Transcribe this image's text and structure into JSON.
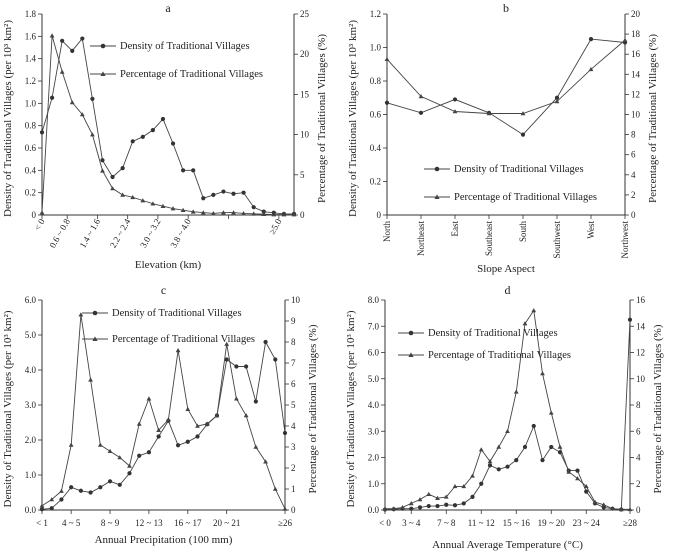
{
  "chart_data": [
    {
      "panel": "a",
      "type": "line",
      "title": "a",
      "xlabel": "Elevation (km)",
      "ylabel": "Density of Traditional Villages (per 10³ km²)",
      "ylabel2": "Percentage of Traditional Villages (%)",
      "ylim": [
        0,
        1.8
      ],
      "yticks": [
        0,
        0.2,
        0.4,
        0.6,
        0.8,
        1.0,
        1.2,
        1.4,
        1.6,
        1.8
      ],
      "ytick_labels": [
        "0",
        "0.2",
        "0.4",
        "0.6",
        "0.8",
        "1.0",
        "1.2",
        "1.4",
        "1.6",
        "1.8"
      ],
      "ylim2": [
        0,
        25
      ],
      "yticks2": [
        0,
        5,
        10,
        15,
        20,
        25
      ],
      "ytick_labels2": [
        "0",
        "5",
        "10",
        "15",
        "20",
        "25"
      ],
      "xrange": [
        0,
        25
      ],
      "xtick_positions": [
        0,
        2.5,
        5.5,
        8.5,
        11.5,
        14.5,
        18.5,
        23.5
      ],
      "xtick_labels": [
        "< 0",
        "0.6 ~ 0.8",
        "1.4 ~ 1.6",
        "2.2 ~ 2.4",
        "3.0 ~ 3.2",
        "3.8 ~ 4.0",
        "",
        "≥5.0"
      ],
      "xtick_label_rotation": -60,
      "legend_position": "top-right",
      "series": [
        {
          "name": "Density of Traditional Villages",
          "marker": "circle",
          "axis": "left",
          "x": [
            0,
            1,
            2,
            3,
            4,
            5,
            6,
            7,
            8,
            9,
            10,
            11,
            12,
            13,
            14,
            15,
            16,
            17,
            18,
            19,
            20,
            21,
            22,
            23,
            24,
            25
          ],
          "values": [
            0.74,
            1.05,
            1.56,
            1.47,
            1.58,
            1.04,
            0.49,
            0.34,
            0.42,
            0.66,
            0.7,
            0.76,
            0.86,
            0.64,
            0.4,
            0.4,
            0.15,
            0.18,
            0.21,
            0.19,
            0.2,
            0.07,
            0.03,
            0.02,
            0.01,
            0.01
          ]
        },
        {
          "name": "Percentage of Traditional Villages",
          "marker": "triangle",
          "axis": "right",
          "x": [
            0,
            1,
            2,
            3,
            4,
            5,
            6,
            7,
            8,
            9,
            10,
            11,
            12,
            13,
            14,
            15,
            16,
            17,
            18,
            19,
            20,
            21,
            22,
            23,
            24,
            25
          ],
          "values": [
            0.3,
            22.3,
            17.8,
            14.0,
            12.5,
            10.0,
            5.5,
            3.3,
            2.5,
            2.2,
            1.8,
            1.4,
            1.1,
            0.8,
            0.6,
            0.4,
            0.3,
            0.2,
            0.3,
            0.3,
            0.2,
            0.15,
            0.1,
            0.05,
            0.05,
            0.05
          ]
        }
      ]
    },
    {
      "panel": "b",
      "type": "line",
      "title": "b",
      "xlabel": "Slope Aspect",
      "ylabel": "Density of Traditional Villages (per 10³ km²)",
      "ylabel2": "Percentage of Traditional Villages (%)",
      "ylim": [
        0,
        1.2
      ],
      "yticks": [
        0,
        0.2,
        0.4,
        0.6,
        0.8,
        1.0,
        1.2
      ],
      "ytick_labels": [
        "0",
        "0.2",
        "0.4",
        "0.6",
        "0.8",
        "1.0",
        "1.2"
      ],
      "ylim2": [
        0,
        20
      ],
      "yticks2": [
        0,
        2,
        4,
        6,
        8,
        10,
        12,
        14,
        16,
        18,
        20
      ],
      "ytick_labels2": [
        "0",
        "2",
        "4",
        "6",
        "8",
        "10",
        "12",
        "14",
        "16",
        "18",
        "20"
      ],
      "xrange": [
        0,
        7
      ],
      "xtick_positions": [
        0,
        1,
        2,
        3,
        4,
        5,
        6,
        7
      ],
      "xtick_labels": [
        "North",
        "Northeast",
        "East",
        "Southeast",
        "South",
        "Southwest",
        "West",
        "Northwest"
      ],
      "xtick_label_rotation": -90,
      "legend_position": "bottom-center",
      "series": [
        {
          "name": "Density of Traditional Villages",
          "marker": "circle",
          "axis": "left",
          "x": [
            0,
            1,
            2,
            3,
            4,
            5,
            6,
            7
          ],
          "values": [
            0.67,
            0.61,
            0.69,
            0.61,
            0.48,
            0.7,
            1.05,
            1.03
          ]
        },
        {
          "name": "Percentage of Traditional Villages",
          "marker": "triangle",
          "axis": "right",
          "x": [
            0,
            1,
            2,
            3,
            4,
            5,
            6,
            7
          ],
          "values": [
            15.5,
            11.8,
            10.3,
            10.1,
            10.1,
            11.3,
            14.5,
            17.4
          ]
        }
      ]
    },
    {
      "panel": "c",
      "type": "line",
      "title": "c",
      "xlabel": "Annual Precipitation (100 mm)",
      "ylabel": "Density of Traditional Villages (per 10³ km²)",
      "ylabel2": "Percentage of Traditional Villages (%)",
      "ylim": [
        0,
        6.0
      ],
      "yticks": [
        0,
        1,
        2,
        3,
        4,
        5,
        6
      ],
      "ytick_labels": [
        "0.0",
        "1.0",
        "2.0",
        "3.0",
        "4.0",
        "5.0",
        "6.0"
      ],
      "ylim2": [
        0,
        10
      ],
      "yticks2": [
        0,
        1,
        2,
        3,
        4,
        5,
        6,
        7,
        8,
        9,
        10
      ],
      "ytick_labels2": [
        "0",
        "1",
        "2",
        "3",
        "4",
        "5",
        "6",
        "7",
        "8",
        "9",
        "10"
      ],
      "xrange": [
        0,
        25
      ],
      "xtick_positions": [
        0,
        3,
        7,
        11,
        15,
        19,
        25
      ],
      "xtick_labels": [
        "< 1",
        "4 ~ 5",
        "8 ~ 9",
        "12 ~ 13",
        "16 ~ 17",
        "20 ~ 21",
        "≥26"
      ],
      "xtick_label_rotation": 0,
      "legend_position": "top-right",
      "series": [
        {
          "name": "Density of Traditional Villages",
          "marker": "circle",
          "axis": "left",
          "x": [
            0,
            1,
            2,
            3,
            4,
            5,
            6,
            7,
            8,
            9,
            10,
            11,
            12,
            13,
            14,
            15,
            16,
            17,
            18,
            19,
            20,
            21,
            22,
            23,
            24,
            25
          ],
          "values": [
            0.02,
            0.05,
            0.3,
            0.65,
            0.55,
            0.5,
            0.65,
            0.82,
            0.72,
            1.05,
            1.55,
            1.65,
            2.1,
            2.55,
            1.85,
            1.95,
            2.1,
            2.45,
            2.7,
            4.3,
            4.1,
            4.1,
            3.1,
            4.8,
            4.3,
            2.2
          ]
        },
        {
          "name": "Percentage of Traditional Villages",
          "marker": "triangle",
          "axis": "right",
          "x": [
            0,
            1,
            2,
            3,
            4,
            5,
            6,
            7,
            8,
            9,
            10,
            11,
            12,
            13,
            14,
            15,
            16,
            17,
            18,
            19,
            20,
            21,
            22,
            23,
            24,
            25
          ],
          "values": [
            0.2,
            0.5,
            0.9,
            3.1,
            9.3,
            6.2,
            3.1,
            2.8,
            2.5,
            2.1,
            4.1,
            5.3,
            3.8,
            4.3,
            7.6,
            4.8,
            4.0,
            4.1,
            4.5,
            7.9,
            5.3,
            4.5,
            3.0,
            2.3,
            1.0,
            0.05
          ]
        }
      ]
    },
    {
      "panel": "d",
      "type": "line",
      "title": "d",
      "xlabel": "Annual Average Temperature (°C)",
      "ylabel": "Density of Traditional Villages (per 10³ km²)",
      "ylabel2": "Percentage of Traditional Villages (%)",
      "ylim": [
        0,
        8.0
      ],
      "yticks": [
        0,
        1,
        2,
        3,
        4,
        5,
        6,
        7,
        8
      ],
      "ytick_labels": [
        "0.0",
        "1.0",
        "2.0",
        "3.0",
        "4.0",
        "5.0",
        "6.0",
        "7.0",
        "8.0"
      ],
      "ylim2": [
        0,
        16
      ],
      "yticks2": [
        0,
        2,
        4,
        6,
        8,
        10,
        12,
        14,
        16
      ],
      "ytick_labels2": [
        "0",
        "2",
        "4",
        "6",
        "8",
        "10",
        "12",
        "14",
        "16"
      ],
      "xrange": [
        0,
        28
      ],
      "xtick_positions": [
        0,
        3,
        7,
        11,
        15,
        19,
        23,
        28
      ],
      "xtick_labels": [
        "< 0",
        "3 ~ 4",
        "7 ~ 8",
        "11 ~ 12",
        "15 ~ 16",
        "19 ~ 20",
        "23 ~ 24",
        "≥28"
      ],
      "xtick_label_rotation": 0,
      "legend_position": "top-left",
      "series": [
        {
          "name": "Density of Traditional Villages",
          "marker": "circle",
          "axis": "left",
          "x": [
            0,
            1,
            2,
            3,
            4,
            5,
            6,
            7,
            8,
            9,
            10,
            11,
            12,
            13,
            14,
            15,
            16,
            17,
            18,
            19,
            20,
            21,
            22,
            23,
            24,
            25,
            26,
            27,
            28
          ],
          "values": [
            0.02,
            0.03,
            0.05,
            0.05,
            0.1,
            0.15,
            0.15,
            0.2,
            0.18,
            0.25,
            0.5,
            1.0,
            1.7,
            1.55,
            1.65,
            1.9,
            2.4,
            3.2,
            1.9,
            2.4,
            2.2,
            1.5,
            1.5,
            0.7,
            0.25,
            0.1,
            0.05,
            0.02,
            7.25
          ]
        },
        {
          "name": "Percentage of Traditional Villages",
          "marker": "triangle",
          "axis": "right",
          "x": [
            0,
            1,
            2,
            3,
            4,
            5,
            6,
            7,
            8,
            9,
            10,
            11,
            12,
            13,
            14,
            15,
            16,
            17,
            18,
            19,
            20,
            21,
            22,
            23,
            24,
            25,
            26,
            27,
            28
          ],
          "values": [
            0.1,
            0.1,
            0.2,
            0.5,
            0.8,
            1.2,
            0.9,
            1.0,
            1.8,
            1.8,
            2.6,
            4.6,
            3.7,
            4.8,
            6.0,
            9.0,
            14.2,
            15.2,
            10.4,
            7.4,
            4.8,
            2.9,
            2.4,
            1.8,
            0.6,
            0.4,
            0.1,
            0.05,
            0.05
          ]
        }
      ]
    }
  ]
}
